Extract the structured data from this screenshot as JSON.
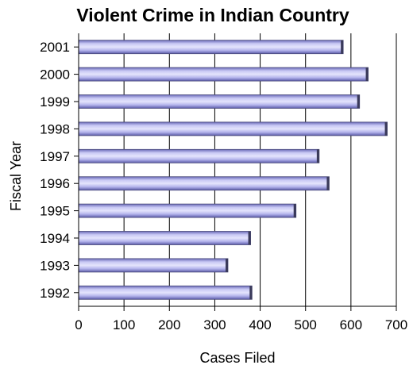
{
  "chart_data": {
    "type": "bar",
    "orientation": "horizontal",
    "title": "Violent Crime in Indian Country",
    "xlabel": "Cases Filed",
    "ylabel": "Fiscal Year",
    "categories": [
      "2001",
      "2000",
      "1999",
      "1998",
      "1997",
      "1996",
      "1995",
      "1994",
      "1993",
      "1992"
    ],
    "values": [
      583,
      638,
      619,
      680,
      530,
      552,
      479,
      379,
      329,
      382
    ],
    "xlim": [
      0,
      700
    ],
    "xticks": [
      "0",
      "100",
      "200",
      "300",
      "400",
      "500",
      "600",
      "700"
    ],
    "grid": "vertical",
    "bar_color": "#a8a8e8"
  }
}
